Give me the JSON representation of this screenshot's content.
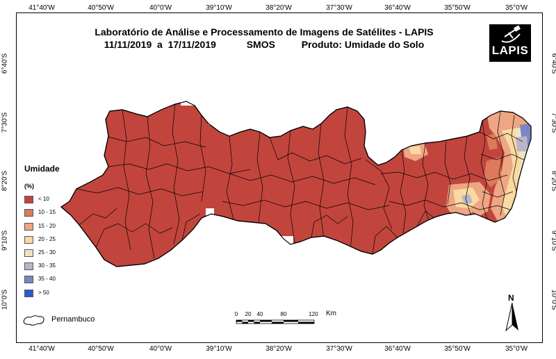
{
  "title": {
    "line1": "Laboratório de Análise e Processamento de Imagens de Satélites - LAPIS",
    "line2_dates": "11/11/2019  a  17/11/2019",
    "line2_sensor": "SMOS",
    "line2_product": "Produto: Umidade do Solo"
  },
  "logo": {
    "text": "LAPIS"
  },
  "longitude_ticks": [
    "41°40'W",
    "40°50'W",
    "40°0'W",
    "39°10'W",
    "38°20'W",
    "37°30'W",
    "36°40'W",
    "35°50'W",
    "35°0'W"
  ],
  "latitude_ticks": [
    "6°40'S",
    "7°30'S",
    "8°20'S",
    "9°10'S",
    "10°0'S"
  ],
  "legend": {
    "title": "Umidade",
    "unit": "(%)",
    "classes": [
      {
        "label": "< 10",
        "color": "#c1453d"
      },
      {
        "label": "10 - 15",
        "color": "#dc7a5b"
      },
      {
        "label": "15 - 20",
        "color": "#eea683"
      },
      {
        "label": "20 - 25",
        "color": "#fad9a2"
      },
      {
        "label": "25 - 30",
        "color": "#ede6c0"
      },
      {
        "label": "30 - 35",
        "color": "#b8b6c8"
      },
      {
        "label": "35 - 40",
        "color": "#7b86c6"
      },
      {
        "label": "> 50",
        "color": "#2d59cf"
      }
    ],
    "state_label": "Pernambuco"
  },
  "scale": {
    "labels": [
      "0",
      "20",
      "40",
      "80",
      "120"
    ],
    "unit": "Km"
  },
  "north_label": "N"
}
